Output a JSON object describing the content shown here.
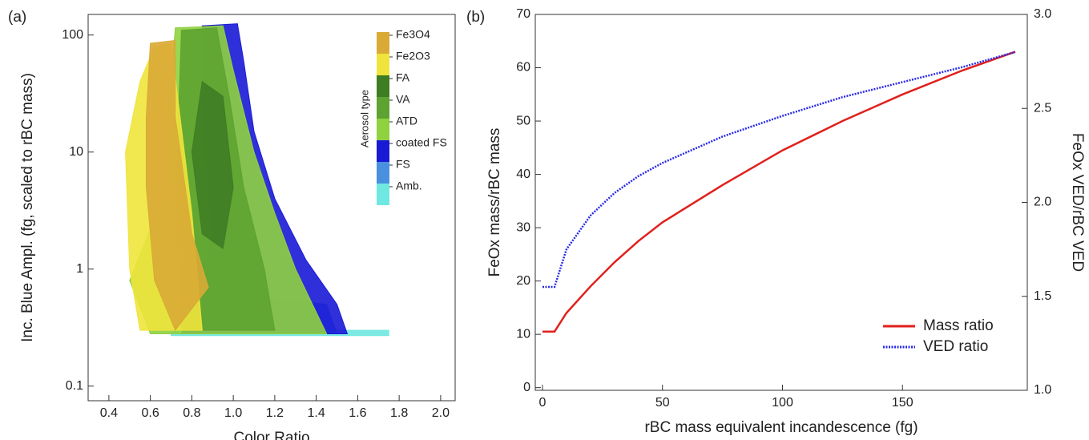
{
  "chart_data": [
    {
      "type": "scatter",
      "panel_label": "(a)",
      "x_label": "Color Ratio",
      "y_label": "Inc. Blue Ampl. (fg, scaled to rBC mass)",
      "yscale": "log",
      "legend_title": "Aerosol type",
      "xlim": [
        0.3,
        2.07
      ],
      "ylim": [
        0.075,
        150
      ],
      "xticks": [
        0.4,
        0.6,
        0.8,
        {
          "value": 1,
          "label": "1.0"
        },
        1.2,
        1.4,
        1.6,
        1.8,
        {
          "value": 2,
          "label": "2.0"
        }
      ],
      "yticks": [
        0.1,
        1,
        10,
        100
      ],
      "series": [
        {
          "name": "Fe3O4",
          "color": "#d9aa35",
          "x": [
            0.6,
            0.72,
            0.72,
            0.8,
            0.88,
            0.72,
            0.62,
            0.58,
            0.58
          ],
          "y": [
            85,
            90,
            20,
            2,
            0.7,
            0.3,
            0.8,
            5,
            20
          ]
        },
        {
          "name": "Fe2O3",
          "color": "#f0e43c",
          "x": [
            0.55,
            0.62,
            0.7,
            0.8,
            0.85,
            0.55,
            0.5,
            0.48
          ],
          "y": [
            40,
            80,
            85,
            3,
            0.3,
            0.3,
            1,
            10
          ]
        },
        {
          "name": "FA",
          "color": "#3f7d23",
          "x": [
            0.85,
            0.95,
            1.0,
            0.95,
            0.85,
            0.8
          ],
          "y": [
            40,
            30,
            5,
            1.5,
            2,
            10
          ]
        },
        {
          "name": "VA",
          "color": "#5ea331",
          "x": [
            0.75,
            0.92,
            0.98,
            1.05,
            1.15,
            1.2,
            0.75,
            0.72
          ],
          "y": [
            110,
            115,
            30,
            5,
            1,
            0.3,
            0.3,
            3
          ]
        },
        {
          "name": "ATD",
          "color": "#8fd13f",
          "x": [
            0.72,
            0.95,
            1.0,
            1.1,
            1.2,
            1.3,
            1.45,
            0.6,
            0.5,
            0.68,
            0.7
          ],
          "y": [
            115,
            120,
            50,
            10,
            3,
            1,
            0.28,
            0.28,
            0.8,
            5,
            40
          ]
        },
        {
          "name": "coated FS",
          "color": "#1a1ad6",
          "x": [
            0.85,
            1.02,
            1.05,
            1.1,
            1.2,
            1.35,
            1.5,
            1.55,
            0.75,
            0.9,
            0.85
          ],
          "y": [
            120,
            125,
            60,
            15,
            4,
            1.2,
            0.5,
            0.28,
            0.28,
            2,
            20
          ]
        },
        {
          "name": "FS",
          "color": "#4a90e0",
          "x": [
            1.0,
            1.5,
            1.45,
            1.05
          ],
          "y": [
            0.28,
            0.28,
            0.5,
            0.6
          ]
        },
        {
          "name": "Amb.",
          "color": "#6ee8e0",
          "x": [
            0.7,
            1.75,
            1.75,
            0.7
          ],
          "y": [
            0.27,
            0.27,
            0.3,
            0.3
          ]
        }
      ]
    },
    {
      "type": "line",
      "panel_label": "(b)",
      "x_label": "rBC mass equivalent incandescence (fg)",
      "y_label": "FeOx mass/rBC mass",
      "y2_label": "FeOx VED/rBC VED",
      "legend": "lower right",
      "xlim": [
        -3,
        202
      ],
      "ylim": [
        -0.5,
        70
      ],
      "y2lim": [
        1.0,
        3.0
      ],
      "xticks": [
        0,
        50,
        100,
        150
      ],
      "yticks": [
        0,
        10,
        20,
        30,
        40,
        50,
        60,
        70
      ],
      "y2ticks": [
        {
          "value": 1,
          "label": "1.0"
        },
        1.5,
        {
          "value": 2,
          "label": "2.0"
        },
        2.5,
        {
          "value": 3,
          "label": "3.0"
        }
      ],
      "x": [
        0,
        5,
        10,
        20,
        30,
        40,
        50,
        75,
        100,
        125,
        150,
        175,
        197
      ],
      "series": [
        {
          "name": "Mass ratio",
          "color": "#e0201c",
          "linestyle": "solid",
          "values": [
            10.5,
            10.5,
            14,
            19,
            23.5,
            27.5,
            31,
            38,
            44.5,
            50,
            55,
            59.5,
            63
          ]
        },
        {
          "name": "VED ratio",
          "color": "#2a2ae8",
          "linestyle": "dotted",
          "axis": "y2",
          "values": [
            1.55,
            1.55,
            1.75,
            1.93,
            2.05,
            2.14,
            2.21,
            2.35,
            2.46,
            2.56,
            2.64,
            2.72,
            2.8
          ]
        }
      ]
    }
  ]
}
